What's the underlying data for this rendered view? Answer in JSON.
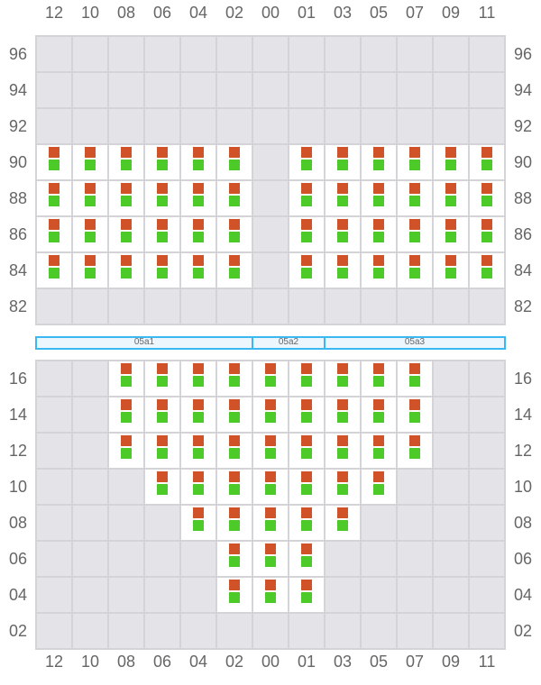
{
  "columns": [
    "12",
    "10",
    "08",
    "06",
    "04",
    "02",
    "00",
    "01",
    "03",
    "05",
    "07",
    "09",
    "11"
  ],
  "colors": {
    "top_square": "#d05228",
    "bottom_square": "#4ec92a",
    "empty_cell": "#e4e4e8",
    "filled_cell": "#ffffff",
    "zone_border": "#3bb8ef"
  },
  "top_section": {
    "rows": [
      {
        "label": "96",
        "filled": []
      },
      {
        "label": "94",
        "filled": []
      },
      {
        "label": "92",
        "filled": []
      },
      {
        "label": "90",
        "filled": [
          "12",
          "10",
          "08",
          "06",
          "04",
          "02",
          "01",
          "03",
          "05",
          "07",
          "09",
          "11"
        ]
      },
      {
        "label": "88",
        "filled": [
          "12",
          "10",
          "08",
          "06",
          "04",
          "02",
          "01",
          "03",
          "05",
          "07",
          "09",
          "11"
        ]
      },
      {
        "label": "86",
        "filled": [
          "12",
          "10",
          "08",
          "06",
          "04",
          "02",
          "01",
          "03",
          "05",
          "07",
          "09",
          "11"
        ]
      },
      {
        "label": "84",
        "filled": [
          "12",
          "10",
          "08",
          "06",
          "04",
          "02",
          "01",
          "03",
          "05",
          "07",
          "09",
          "11"
        ]
      },
      {
        "label": "82",
        "filled": []
      }
    ]
  },
  "zones": [
    {
      "label": "05a1",
      "from": "12",
      "to": "02"
    },
    {
      "label": "05a2",
      "from": "00",
      "to": "01"
    },
    {
      "label": "05a3",
      "from": "03",
      "to": "11"
    }
  ],
  "bottom_section": {
    "rows": [
      {
        "label": "16",
        "filled": [
          "08",
          "06",
          "04",
          "02",
          "00",
          "01",
          "03",
          "05",
          "07"
        ]
      },
      {
        "label": "14",
        "filled": [
          "08",
          "06",
          "04",
          "02",
          "00",
          "01",
          "03",
          "05",
          "07"
        ]
      },
      {
        "label": "12",
        "filled": [
          "08",
          "06",
          "04",
          "02",
          "00",
          "01",
          "03",
          "05",
          "07"
        ]
      },
      {
        "label": "10",
        "filled": [
          "06",
          "04",
          "02",
          "00",
          "01",
          "03",
          "05"
        ]
      },
      {
        "label": "08",
        "filled": [
          "04",
          "02",
          "00",
          "01",
          "03"
        ]
      },
      {
        "label": "06",
        "filled": [
          "02",
          "00",
          "01"
        ]
      },
      {
        "label": "04",
        "filled": [
          "02",
          "00",
          "01"
        ]
      },
      {
        "label": "02",
        "filled": []
      }
    ]
  }
}
